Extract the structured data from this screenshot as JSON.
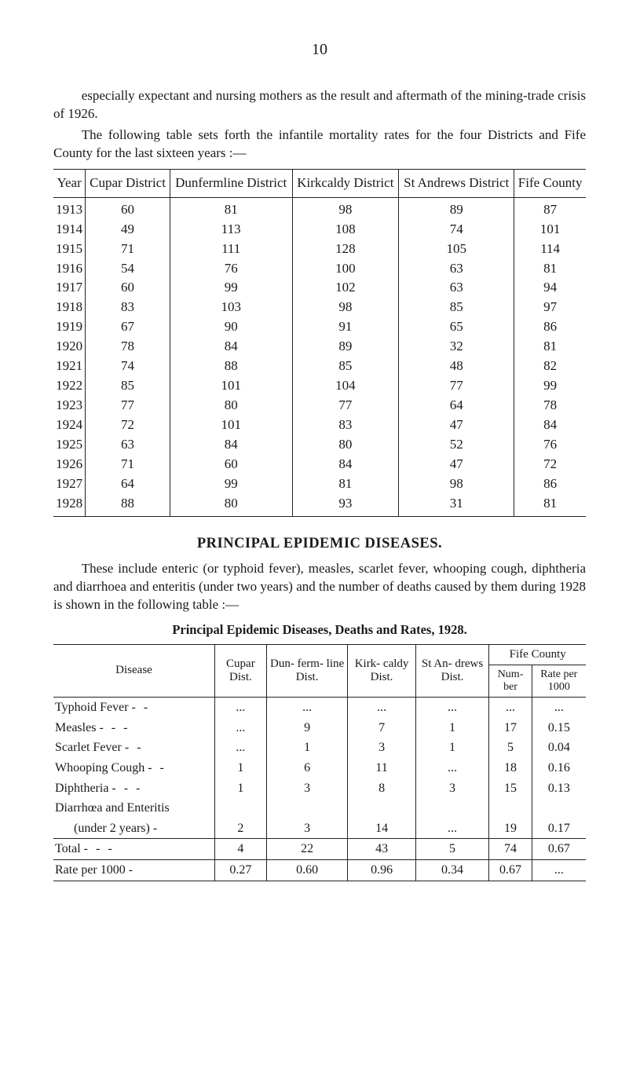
{
  "page_number": "10",
  "para1": "especially expectant and nursing mothers as the result and aftermath of the mining-trade crisis of 1926.",
  "para2": "The following table sets forth the infantile mortality rates for the four Districts and Fife County for the last sixteen years :—",
  "mortality_table": {
    "headers": {
      "year": "Year",
      "cupar": "Cupar District",
      "dunfermline": "Dunfermline District",
      "kirkcaldy": "Kirkcaldy District",
      "standrews": "St Andrews District",
      "fife": "Fife County"
    },
    "rows": [
      {
        "year": "1913",
        "cupar": "60",
        "dun": "81",
        "kirk": "98",
        "sta": "89",
        "fife": "87"
      },
      {
        "year": "1914",
        "cupar": "49",
        "dun": "113",
        "kirk": "108",
        "sta": "74",
        "fife": "101"
      },
      {
        "year": "1915",
        "cupar": "71",
        "dun": "111",
        "kirk": "128",
        "sta": "105",
        "fife": "114"
      },
      {
        "year": "1916",
        "cupar": "54",
        "dun": "76",
        "kirk": "100",
        "sta": "63",
        "fife": "81"
      },
      {
        "year": "1917",
        "cupar": "60",
        "dun": "99",
        "kirk": "102",
        "sta": "63",
        "fife": "94"
      },
      {
        "year": "1918",
        "cupar": "83",
        "dun": "103",
        "kirk": "98",
        "sta": "85",
        "fife": "97"
      },
      {
        "year": "1919",
        "cupar": "67",
        "dun": "90",
        "kirk": "91",
        "sta": "65",
        "fife": "86"
      },
      {
        "year": "1920",
        "cupar": "78",
        "dun": "84",
        "kirk": "89",
        "sta": "32",
        "fife": "81"
      },
      {
        "year": "1921",
        "cupar": "74",
        "dun": "88",
        "kirk": "85",
        "sta": "48",
        "fife": "82"
      },
      {
        "year": "1922",
        "cupar": "85",
        "dun": "101",
        "kirk": "104",
        "sta": "77",
        "fife": "99"
      },
      {
        "year": "1923",
        "cupar": "77",
        "dun": "80",
        "kirk": "77",
        "sta": "64",
        "fife": "78"
      },
      {
        "year": "1924",
        "cupar": "72",
        "dun": "101",
        "kirk": "83",
        "sta": "47",
        "fife": "84"
      },
      {
        "year": "1925",
        "cupar": "63",
        "dun": "84",
        "kirk": "80",
        "sta": "52",
        "fife": "76"
      },
      {
        "year": "1926",
        "cupar": "71",
        "dun": "60",
        "kirk": "84",
        "sta": "47",
        "fife": "72"
      },
      {
        "year": "1927",
        "cupar": "64",
        "dun": "99",
        "kirk": "81",
        "sta": "98",
        "fife": "86"
      },
      {
        "year": "1928",
        "cupar": "88",
        "dun": "80",
        "kirk": "93",
        "sta": "31",
        "fife": "81"
      }
    ]
  },
  "section_title": "PRINCIPAL EPIDEMIC DISEASES.",
  "para3": "These include enteric (or typhoid fever), measles, scarlet fever, whooping cough, diphtheria and diarrhoea and enteritis (under two years) and the number of deaths caused by them during 1928 is shown in the following table :—",
  "subtitle": "Principal Epidemic Diseases, Deaths and Rates, 1928.",
  "epidemic_table": {
    "headers": {
      "disease": "Disease",
      "cupar": "Cupar Dist.",
      "dun": "Dun- ferm- line Dist.",
      "kirk": "Kirk- caldy Dist.",
      "sta": "St An- drews Dist.",
      "fife": "Fife County",
      "num": "Num- ber",
      "rate": "Rate per 1000"
    },
    "rows": [
      {
        "label": "Typhoid Fever",
        "dash": "-   -",
        "cupar": "...",
        "dun": "...",
        "kirk": "...",
        "sta": "...",
        "num": "...",
        "rate": "..."
      },
      {
        "label": "Measles",
        "dash": "-   -   -",
        "cupar": "...",
        "dun": "9",
        "kirk": "7",
        "sta": "1",
        "num": "17",
        "rate": "0.15"
      },
      {
        "label": "Scarlet Fever",
        "dash": "-   -",
        "cupar": "...",
        "dun": "1",
        "kirk": "3",
        "sta": "1",
        "num": "5",
        "rate": "0.04"
      },
      {
        "label": "Whooping Cough",
        "dash": "-   -",
        "cupar": "1",
        "dun": "6",
        "kirk": "11",
        "sta": "...",
        "num": "18",
        "rate": "0.16"
      },
      {
        "label": "Diphtheria",
        "dash": "-   -   -",
        "cupar": "1",
        "dun": "3",
        "kirk": "8",
        "sta": "3",
        "num": "15",
        "rate": "0.13"
      },
      {
        "label": "Diarrhœa   and   Enteritis",
        "dash": "",
        "cupar": "",
        "dun": "",
        "kirk": "",
        "sta": "",
        "num": "",
        "rate": ""
      },
      {
        "label": "      (under 2 years)",
        "dash": "-",
        "cupar": "2",
        "dun": "3",
        "kirk": "14",
        "sta": "...",
        "num": "19",
        "rate": "0.17"
      }
    ],
    "total_row": {
      "label": "Total",
      "dash": "-   -   -",
      "cupar": "4",
      "dun": "22",
      "kirk": "43",
      "sta": "5",
      "num": "74",
      "rate": "0.67"
    },
    "rate_row": {
      "label": "Rate per 1000",
      "dash": "-",
      "cupar": "0.27",
      "dun": "0.60",
      "kirk": "0.96",
      "sta": "0.34",
      "num": "0.67",
      "rate": "..."
    }
  }
}
